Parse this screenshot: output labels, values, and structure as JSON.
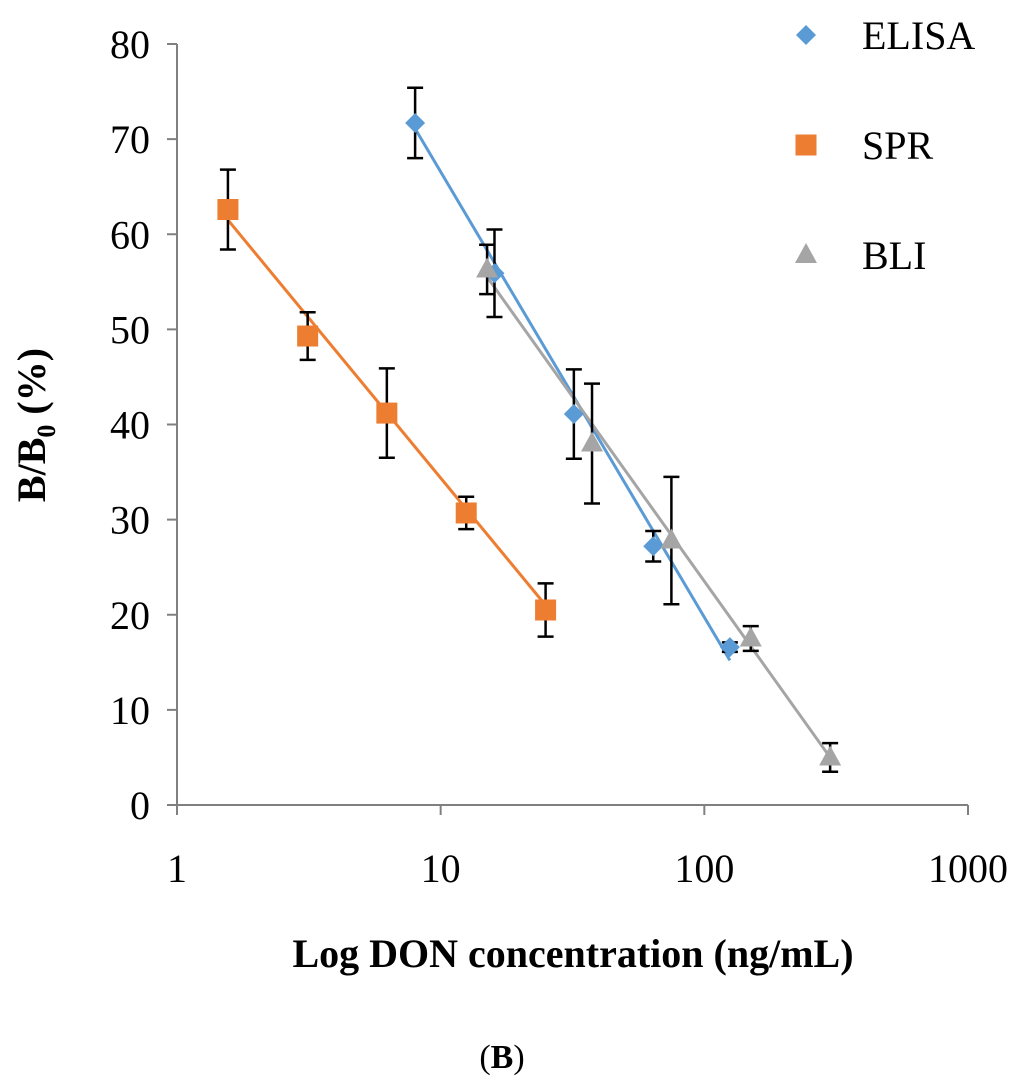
{
  "chart_data": {
    "type": "scatter",
    "x_scale": "log",
    "xlim": [
      1,
      1000
    ],
    "ylim": [
      0,
      80
    ],
    "x_ticks": [
      "1",
      "10",
      "100",
      "1000"
    ],
    "y_ticks": [
      "0",
      "10",
      "20",
      "30",
      "40",
      "50",
      "60",
      "70",
      "80"
    ],
    "xlabel": "Log DON concentration (ng/mL)",
    "ylabel": {
      "main": "B/B",
      "sub": "0",
      "suffix": " (%)"
    },
    "grid": false,
    "legend_position": "top-right",
    "panel_label": {
      "open": "(",
      "letter": "B",
      "close": ")"
    },
    "series": [
      {
        "name": "ELISA",
        "marker": "diamond",
        "color": "#5b9bd5",
        "x": [
          8,
          16,
          32,
          64,
          125
        ],
        "y": [
          71.7,
          55.9,
          41.1,
          27.2,
          16.6
        ],
        "err": [
          3.7,
          4.6,
          4.7,
          1.6,
          0.5
        ],
        "fit": {
          "x0": 8,
          "y0": 71.1,
          "x1": 125,
          "y1": 15.2
        }
      },
      {
        "name": "SPR",
        "marker": "square",
        "color": "#ed7d31",
        "x": [
          1.56,
          3.13,
          6.25,
          12.5,
          25
        ],
        "y": [
          62.6,
          49.3,
          41.2,
          30.7,
          20.5
        ],
        "err": [
          4.2,
          2.5,
          4.7,
          1.7,
          2.8
        ],
        "fit": {
          "x0": 1.56,
          "y0": 61.5,
          "x1": 25,
          "y1": 21.0
        }
      },
      {
        "name": "BLI",
        "marker": "triangle",
        "color": "#a5a5a5",
        "x": [
          15,
          37.5,
          75,
          150,
          300
        ],
        "y": [
          56.3,
          38.0,
          27.8,
          17.5,
          5.0
        ],
        "err": [
          2.6,
          6.3,
          6.7,
          1.3,
          1.5
        ],
        "fit": {
          "x0": 15,
          "y0": 55.5,
          "x1": 300,
          "y1": 5.0
        }
      }
    ]
  }
}
